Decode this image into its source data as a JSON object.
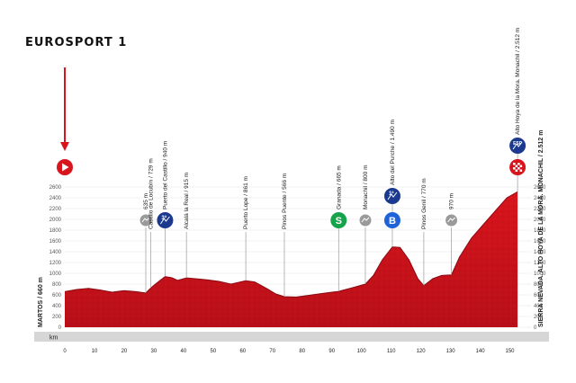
{
  "broadcaster": "EUROSPORT 1",
  "colors": {
    "profile": "#c8141e",
    "profile_dark": "#8a0a12",
    "accent": "#d8141c",
    "km_bar": "#d6d6d6"
  },
  "chart_data": {
    "type": "area",
    "x_axis_label": "km",
    "xlim": [
      0,
      155
    ],
    "ylim": [
      0,
      2600
    ],
    "y_ticks": [
      0,
      200,
      400,
      600,
      800,
      1000,
      1200,
      1400,
      1600,
      1800,
      2000,
      2200,
      2400,
      2600
    ],
    "x_ticks": [
      0,
      10,
      20,
      30,
      40,
      50,
      60,
      70,
      80,
      90,
      100,
      110,
      120,
      130,
      140,
      150
    ],
    "start_label": "MARTOS / 660 m",
    "finish_label": "SIERRA NEVADA. ALTO HOYA DE LA MORA. MONACHIL / 2.512 m",
    "profile": [
      [
        0,
        660
      ],
      [
        4,
        700
      ],
      [
        8,
        720
      ],
      [
        12,
        690
      ],
      [
        16,
        650
      ],
      [
        20,
        680
      ],
      [
        24,
        660
      ],
      [
        27.3,
        635
      ],
      [
        29,
        729
      ],
      [
        31,
        820
      ],
      [
        33.8,
        940
      ],
      [
        36,
        920
      ],
      [
        38,
        870
      ],
      [
        41,
        915
      ],
      [
        44,
        900
      ],
      [
        48,
        880
      ],
      [
        52,
        850
      ],
      [
        56,
        800
      ],
      [
        61,
        861
      ],
      [
        64,
        840
      ],
      [
        68,
        720
      ],
      [
        71,
        620
      ],
      [
        74,
        566
      ],
      [
        78,
        560
      ],
      [
        82,
        590
      ],
      [
        86,
        620
      ],
      [
        90,
        650
      ],
      [
        92.3,
        665
      ],
      [
        96,
        720
      ],
      [
        101.3,
        800
      ],
      [
        104,
        960
      ],
      [
        107,
        1250
      ],
      [
        110.4,
        1490
      ],
      [
        113,
        1480
      ],
      [
        116,
        1250
      ],
      [
        119,
        900
      ],
      [
        121,
        770
      ],
      [
        124,
        900
      ],
      [
        127,
        960
      ],
      [
        130.3,
        970
      ],
      [
        133,
        1300
      ],
      [
        137,
        1650
      ],
      [
        141,
        1900
      ],
      [
        145,
        2150
      ],
      [
        149,
        2400
      ],
      [
        152.6,
        2512
      ]
    ],
    "waypoints": [
      {
        "km": 27.3,
        "km_label": "27,3",
        "elev": 635,
        "name": "635 m",
        "icon": "intermediate-point-icon"
      },
      {
        "km": 29,
        "km_label": "29",
        "elev": 729,
        "name": "Castillo de Locubín / 729 m",
        "icon": ""
      },
      {
        "km": 33.8,
        "km_label": "33,8",
        "elev": 940,
        "name": "Puerto del Castillo / 940 m",
        "icon": "cat-3-climb-icon",
        "badge": "3ª"
      },
      {
        "km": 41,
        "km_label": "41",
        "elev": 915,
        "name": "Alcalá la Real / 915 m",
        "icon": ""
      },
      {
        "km": 61,
        "km_label": "61",
        "elev": 861,
        "name": "Puerto Lope / 861 m",
        "icon": ""
      },
      {
        "km": 74,
        "km_label": "74",
        "elev": 566,
        "name": "Pinos Puente / 566 m",
        "icon": ""
      },
      {
        "km": 92.3,
        "km_label": "92,3",
        "elev": 665,
        "name": "Granada / 665 m",
        "icon": "sprint-icon",
        "badge": "S"
      },
      {
        "km": 101.3,
        "km_label": "101,3",
        "elev": 800,
        "name": "Monachil / 800 m",
        "icon": "intermediate-point-icon"
      },
      {
        "km": 110.4,
        "km_label": "110,4",
        "elev": 1490,
        "name": "Alto del Purche / 1.490 m",
        "icon": "cat-1-climb-icon",
        "badge": "1ª",
        "bonus": "B"
      },
      {
        "km": 121,
        "km_label": "121",
        "elev": 770,
        "name": "Pinos Genil / 770 m",
        "icon": ""
      },
      {
        "km": 130.3,
        "km_label": "130,3",
        "elev": 970,
        "name": "970 m",
        "icon": "intermediate-point-icon"
      },
      {
        "km": 152.6,
        "km_label": "152,6",
        "elev": 2512,
        "name": "Alto Hoya de la Mora. Monachil / 2.512 m",
        "icon": "especial-climb-icon",
        "badge": "ESP"
      }
    ]
  }
}
